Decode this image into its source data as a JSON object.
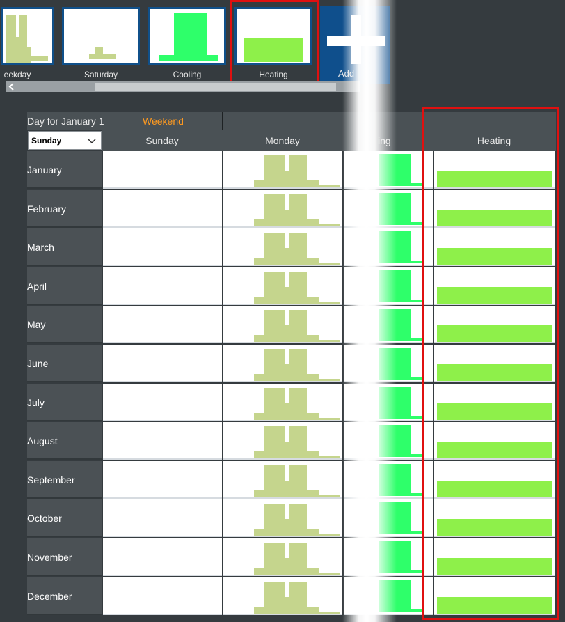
{
  "thumbnails": [
    {
      "id": "weekday",
      "label": "eekday"
    },
    {
      "id": "saturday",
      "label": "Saturday"
    },
    {
      "id": "cooling",
      "label": "Cooling"
    },
    {
      "id": "heating",
      "label": "Heating"
    }
  ],
  "add_button": {
    "label": "Add"
  },
  "grid": {
    "day_for_label": "Day for January 1",
    "day_for_value": "Weekend",
    "day_select": "Sunday",
    "columns": [
      "Sunday",
      "Monday",
      "",
      "Heating"
    ],
    "partial_column_label": "ing",
    "months": [
      "January",
      "February",
      "March",
      "April",
      "May",
      "June",
      "July",
      "August",
      "September",
      "October",
      "November",
      "December"
    ]
  },
  "colors": {
    "weekday": "#c5d58d",
    "cooling": "#2eff6a",
    "heating": "#8ef04a",
    "accent": "#e01010",
    "orange": "#ff9a20"
  }
}
